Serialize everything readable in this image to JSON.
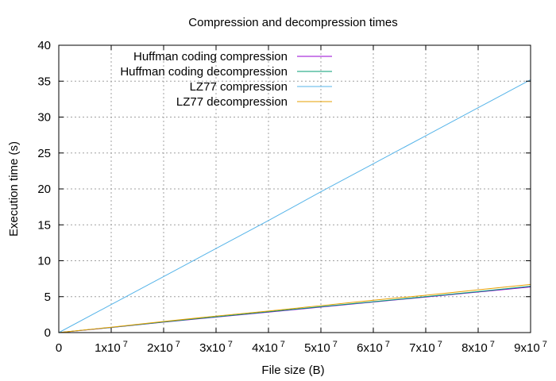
{
  "chart_data": {
    "type": "line",
    "title": "Compression and decompression times",
    "xlabel": "File size (B)",
    "ylabel": "Execution time (s)",
    "xlim": [
      0,
      90000000
    ],
    "ylim": [
      0,
      40
    ],
    "x_ticks": [
      {
        "value": 0,
        "label": "0",
        "exp": ""
      },
      {
        "value": 10000000,
        "label": "1x10",
        "exp": "7"
      },
      {
        "value": 20000000,
        "label": "2x10",
        "exp": "7"
      },
      {
        "value": 30000000,
        "label": "3x10",
        "exp": "7"
      },
      {
        "value": 40000000,
        "label": "4x10",
        "exp": "7"
      },
      {
        "value": 50000000,
        "label": "5x10",
        "exp": "7"
      },
      {
        "value": 60000000,
        "label": "6x10",
        "exp": "7"
      },
      {
        "value": 70000000,
        "label": "7x10",
        "exp": "7"
      },
      {
        "value": 80000000,
        "label": "8x10",
        "exp": "7"
      },
      {
        "value": 90000000,
        "label": "9x10",
        "exp": "7"
      }
    ],
    "y_ticks": [
      0,
      5,
      10,
      15,
      20,
      25,
      30,
      35,
      40
    ],
    "grid": true,
    "legend_position": "top-left",
    "series": [
      {
        "name": "Huffman coding compression",
        "color": "#9400d3",
        "x": [
          0,
          10000000,
          20000000,
          30000000,
          40000000,
          50000000,
          60000000,
          70000000,
          80000000,
          90000000
        ],
        "y": [
          0,
          0.7,
          1.45,
          2.15,
          2.85,
          3.55,
          4.25,
          4.95,
          5.65,
          6.35
        ]
      },
      {
        "name": "Huffman coding decompression",
        "color": "#009e73",
        "x": [
          0,
          10000000,
          20000000,
          30000000,
          40000000,
          50000000,
          60000000,
          70000000,
          80000000,
          90000000
        ],
        "y": [
          0,
          0.72,
          1.48,
          2.2,
          2.9,
          3.6,
          4.3,
          5.0,
          5.7,
          6.45
        ]
      },
      {
        "name": "LZ77 compression",
        "color": "#56b4e9",
        "x": [
          0,
          10000000,
          20000000,
          30000000,
          40000000,
          50000000,
          60000000,
          70000000,
          80000000,
          90000000
        ],
        "y": [
          0,
          3.9,
          7.8,
          11.7,
          15.6,
          19.6,
          23.5,
          27.4,
          31.3,
          35.2
        ]
      },
      {
        "name": "LZ77 decompression",
        "color": "#e69f00",
        "x": [
          0,
          10000000,
          20000000,
          30000000,
          40000000,
          50000000,
          60000000,
          70000000,
          80000000,
          90000000
        ],
        "y": [
          0,
          0.75,
          1.55,
          2.3,
          3.0,
          3.75,
          4.5,
          5.2,
          5.95,
          6.7
        ]
      }
    ]
  }
}
